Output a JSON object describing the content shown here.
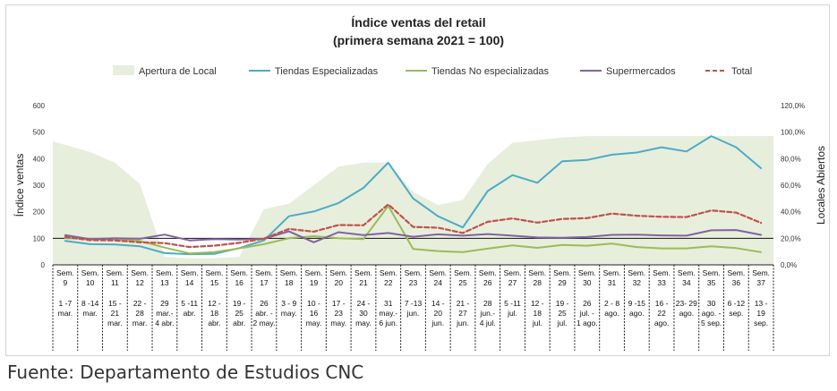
{
  "chart_data": {
    "type": "line",
    "title": "Índice ventas del retail",
    "subtitle": "(primera semana 2021 = 100)",
    "ylabel": "Índice ventas",
    "y2label": "Locales Abiertos",
    "ylim": [
      0,
      600
    ],
    "yticks": [
      "0",
      "100",
      "200",
      "300",
      "400",
      "500",
      "600"
    ],
    "y2lim": [
      0,
      120
    ],
    "y2ticks": [
      "0,0%",
      "20,0%",
      "40,0%",
      "60,0%",
      "80,0%",
      "100,0%",
      "120,0%"
    ],
    "grid": false,
    "legend_position": "top",
    "categories": [
      {
        "week": "Sem. 9",
        "dates": "1 -7 mar."
      },
      {
        "week": "Sem. 10",
        "dates": "8 -14 mar."
      },
      {
        "week": "Sem. 11",
        "dates": "15 - 21 mar."
      },
      {
        "week": "Sem. 12",
        "dates": "22 - 28 mar."
      },
      {
        "week": "Sem. 13",
        "dates": "29 mar.- 4 abr."
      },
      {
        "week": "Sem. 14",
        "dates": "5 -11 abr."
      },
      {
        "week": "Sem. 15",
        "dates": "12 - 18 abr."
      },
      {
        "week": "Sem. 16",
        "dates": "19 - 25 abr."
      },
      {
        "week": "Sem. 17",
        "dates": "26 abr. - 2 may."
      },
      {
        "week": "Sem. 18",
        "dates": "3 - 9 may."
      },
      {
        "week": "Sem. 19",
        "dates": "10 - 16 may."
      },
      {
        "week": "Sem. 20",
        "dates": "17 - 23 may."
      },
      {
        "week": "Sem. 21",
        "dates": "24 - 30 may."
      },
      {
        "week": "Sem. 22",
        "dates": "31 may.- 6 jun."
      },
      {
        "week": "Sem. 23",
        "dates": "7 -13 jun."
      },
      {
        "week": "Sem. 24",
        "dates": "14 - 20 jun."
      },
      {
        "week": "Sem. 25",
        "dates": "21 - 27 jun."
      },
      {
        "week": "Sem. 26",
        "dates": "28 jun.- 4 jul."
      },
      {
        "week": "Sem. 27",
        "dates": "5 -11 jul."
      },
      {
        "week": "Sem. 28",
        "dates": "12 - 18 jul."
      },
      {
        "week": "Sem. 29",
        "dates": "19 - 25 jul."
      },
      {
        "week": "Sem. 30",
        "dates": "26 jul. - 1 ago."
      },
      {
        "week": "Sem. 31",
        "dates": "2 - 8 ago."
      },
      {
        "week": "Sem. 32",
        "dates": "9 -15 ago."
      },
      {
        "week": "Sem. 33",
        "dates": "16 - 22 ago."
      },
      {
        "week": "Sem. 34",
        "dates": "23- 29 ago."
      },
      {
        "week": "Sem. 35",
        "dates": "30 ago. - 5 sep."
      },
      {
        "week": "Sem. 36",
        "dates": "6 -12 sep."
      },
      {
        "week": "Sem. 37",
        "dates": "13 - 19 sep."
      }
    ],
    "area_series": {
      "name": "Apertura de Local",
      "axis": "secondary",
      "color": "#e8eedc",
      "values": [
        93,
        85,
        77,
        61,
        6,
        5,
        5,
        6,
        42,
        46,
        60,
        74,
        77,
        77,
        55,
        45,
        49,
        76,
        92,
        94,
        96,
        97,
        97,
        97,
        97,
        97,
        97,
        97,
        97
      ]
    },
    "series": [
      {
        "name": "Tiendas Especializadas",
        "color": "#4bacc6",
        "dash": false,
        "values": [
          90,
          78,
          77,
          70,
          44,
          40,
          41,
          63,
          92,
          183,
          201,
          233,
          290,
          385,
          250,
          183,
          141,
          278,
          338,
          309,
          390,
          395,
          415,
          423,
          443,
          427,
          485,
          443,
          364
        ]
      },
      {
        "name": "Tiendas No especializadas",
        "color": "#9bbb59",
        "dash": false,
        "values": [
          100,
          98,
          97,
          90,
          65,
          43,
          48,
          62,
          78,
          100,
          108,
          100,
          97,
          222,
          60,
          52,
          48,
          61,
          73,
          64,
          75,
          72,
          80,
          67,
          62,
          62,
          70,
          63,
          48
        ]
      },
      {
        "name": "Supermercados",
        "color": "#8064a2",
        "dash": false,
        "values": [
          112,
          97,
          100,
          98,
          114,
          92,
          97,
          95,
          98,
          126,
          85,
          123,
          112,
          120,
          106,
          115,
          110,
          116,
          110,
          103,
          102,
          105,
          113,
          114,
          111,
          110,
          130,
          131,
          113
        ]
      },
      {
        "name": "Total",
        "color": "#c0504d",
        "dash": true,
        "values": [
          105,
          93,
          92,
          85,
          82,
          67,
          72,
          83,
          99,
          135,
          125,
          150,
          149,
          228,
          143,
          140,
          120,
          162,
          175,
          159,
          173,
          176,
          193,
          185,
          181,
          180,
          205,
          197,
          158
        ]
      }
    ]
  },
  "source": "Fuente: Departamento de Estudios CNC"
}
